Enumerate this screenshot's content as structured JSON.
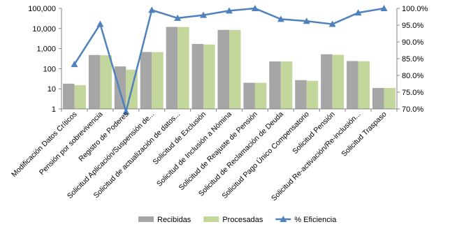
{
  "chart_data": {
    "type": "bar",
    "categories": [
      "Modificación Datos Críticos",
      "Pensión por sobrevivencia",
      "Registro de Poderes",
      "Solicitud Aplicación/Suspensión de...",
      "Solicitud de actualización de datos...",
      "Solicitud de Exclusión",
      "Solicitud de Inclusión a Nómina",
      "Solicitud de Reajuste de Pensión",
      "Solicitud de Reclamación de Deuda",
      "Solicitud Pago Único Compensatorio",
      "Solicitud Pensión",
      "Solicitud Re-activación/Re-inclusión...",
      "Solicitud Traspaso"
    ],
    "series": [
      {
        "name": "Recibidas",
        "type": "bar",
        "axis": "left",
        "color": "#a6a6a6",
        "values": [
          18,
          480,
          130,
          680,
          12000,
          1700,
          8500,
          20,
          230,
          27,
          520,
          240,
          11
        ]
      },
      {
        "name": "Procesadas",
        "type": "bar",
        "axis": "left",
        "color": "#c3d69b",
        "values": [
          15,
          470,
          90,
          670,
          11800,
          1600,
          8400,
          20,
          230,
          25,
          490,
          235,
          11
        ]
      },
      {
        "name": "% Eficiencia",
        "type": "line",
        "axis": "right",
        "color": "#4f81bd",
        "values": [
          83.3,
          95.3,
          69.2,
          99.5,
          97.1,
          98.0,
          99.3,
          100.0,
          96.8,
          96.2,
          95.3,
          98.7,
          100.0
        ]
      }
    ],
    "y_left": {
      "scale": "log",
      "range": [
        1,
        100000
      ],
      "ticks": [
        "1",
        "10",
        "100",
        "1,000",
        "10,000",
        "100,000"
      ]
    },
    "y_right": {
      "range": [
        70,
        100
      ],
      "ticks": [
        "70.0%",
        "75.0%",
        "80.0%",
        "85.0%",
        "90.0%",
        "95.0%",
        "100.0%"
      ]
    },
    "grid": false,
    "legend": "bottom"
  }
}
